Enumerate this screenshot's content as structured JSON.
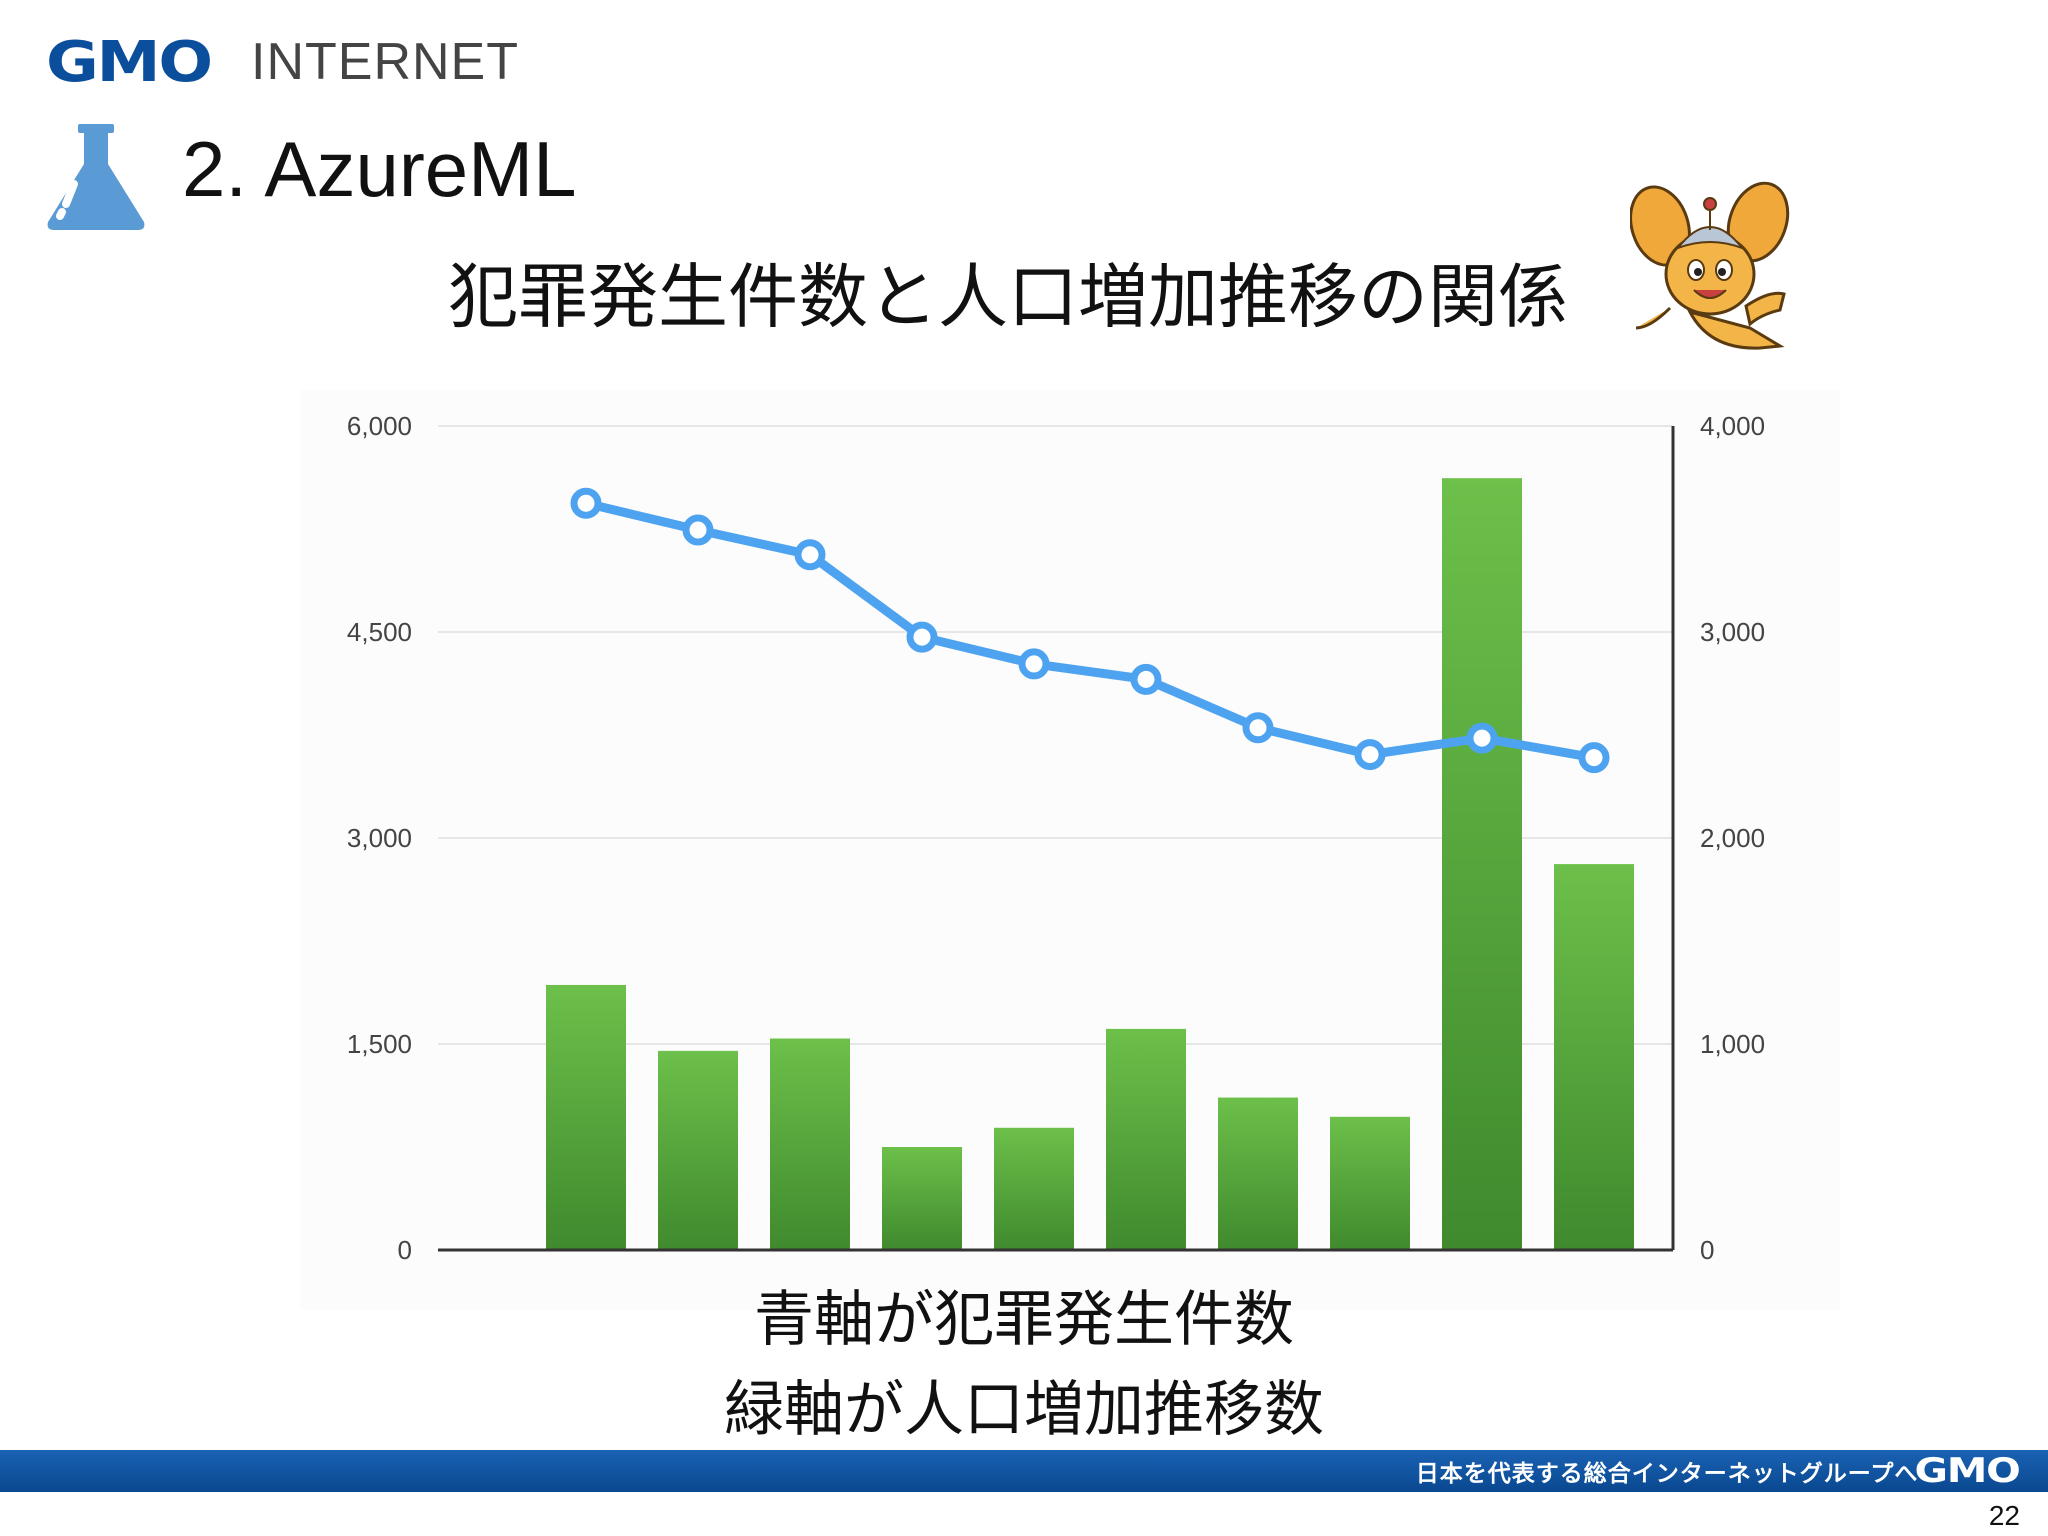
{
  "header": {
    "logo_primary": "GMO",
    "logo_secondary": "INTERNET",
    "title": "2. AzureML",
    "subtitle": "犯罪発生件数と人口増加推移の関係"
  },
  "captions": {
    "line1": "青軸が犯罪発生件数",
    "line2": "緑軸が人口増加推移数"
  },
  "footer": {
    "tagline": "日本を代表する総合インターネットグループへ",
    "logo": "GMO",
    "page_number": "22"
  },
  "icons": {
    "flask": "flask-icon",
    "mascot": "mascot-character"
  },
  "colors": {
    "brand_blue": "#0b4f9c",
    "flask_blue": "#5b9bd5",
    "bar_green_top": "#6dc04a",
    "bar_green_bottom": "#3f8a2e",
    "line_blue": "#4ea3f0"
  },
  "chart_data": {
    "type": "bar",
    "categories": [
      "",
      "",
      "",
      "",
      "",
      "",
      "",
      "",
      "",
      ""
    ],
    "series": [
      {
        "axis": "left",
        "type": "bar",
        "values": [
          1930,
          1450,
          1540,
          750,
          890,
          1610,
          1110,
          970,
          5620,
          2810
        ]
      },
      {
        "axis": "right",
        "type": "line",
        "values": [
          3625,
          3495,
          3375,
          2975,
          2845,
          2770,
          2535,
          2405,
          2485,
          2390
        ]
      }
    ],
    "y_left": {
      "ticks": [
        "6,000",
        "4,500",
        "3,000",
        "1,500",
        "0"
      ],
      "range": [
        0,
        6000
      ]
    },
    "y_right": {
      "ticks": [
        "4,000",
        "3,000",
        "2,000",
        "1,000",
        "0"
      ],
      "range": [
        0,
        4000
      ]
    },
    "grid": true,
    "legend": "none"
  }
}
